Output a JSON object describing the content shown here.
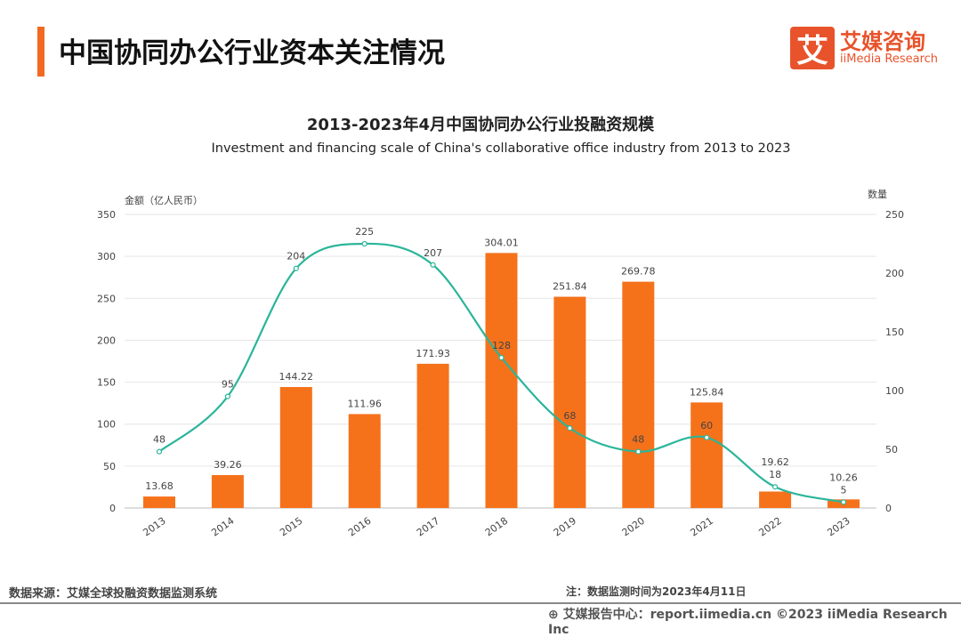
{
  "header": {
    "title": "中国协同办公行业资本关注情况",
    "logo_mark": "艾",
    "logo_cn": "艾媒咨询",
    "logo_en": "iiMedia Research"
  },
  "chart_data": {
    "type": "bar+line",
    "title": "2013-2023年4月中国协同办公行业投融资规模",
    "subtitle": "Investment and financing scale of China's collaborative office industry from 2013 to 2023",
    "categories": [
      "2013",
      "2014",
      "2015",
      "2016",
      "2017",
      "2018",
      "2019",
      "2020",
      "2021",
      "2022",
      "2023"
    ],
    "series": [
      {
        "name": "金额（亿人民币）",
        "type": "bar",
        "axis": "left",
        "color": "#f5721b",
        "values": [
          13.68,
          39.26,
          144.22,
          111.96,
          171.93,
          304.01,
          251.84,
          269.78,
          125.84,
          19.62,
          10.26
        ]
      },
      {
        "name": "数量",
        "type": "line",
        "axis": "right",
        "color": "#2bb59a",
        "values": [
          48,
          95,
          204,
          225,
          207,
          128,
          68,
          48,
          60,
          18,
          5
        ]
      }
    ],
    "ylabel_left": "金额（亿人民币）",
    "ylabel_right": "数量",
    "ylim_left": [
      0,
      350
    ],
    "yticks_left": [
      0,
      50,
      100,
      150,
      200,
      250,
      300,
      350
    ],
    "ylim_right": [
      0,
      250
    ],
    "yticks_right": [
      0,
      50,
      100,
      150,
      200,
      250
    ],
    "grid": true,
    "legend": "none"
  },
  "footer": {
    "source": "数据来源：艾媒全球投融资数据监测系统",
    "note": "注：数据监测时间为2023年4月11日",
    "credit": "艾媒报告中心：report.iimedia.cn   ©2023  iiMedia Research  Inc"
  }
}
